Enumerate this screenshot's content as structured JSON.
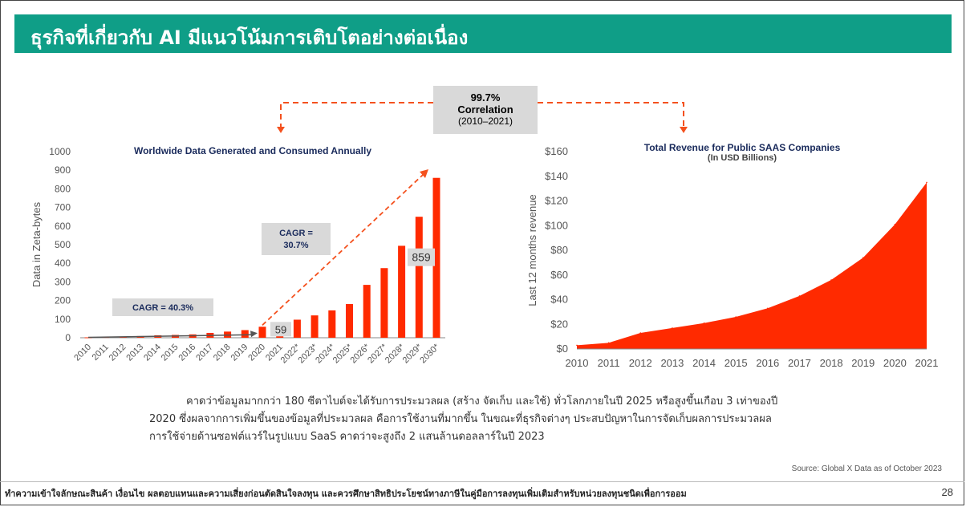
{
  "header": {
    "title": "ธุรกิจที่เกี่ยวกับ AI มีแนวโน้มการเติบโตอย่างต่อเนื่อง"
  },
  "correlation": {
    "value": "99.7%",
    "label": "Correlation",
    "period": "(2010–2021)"
  },
  "colors": {
    "accent": "#ff2a00",
    "teal": "#0f9e87",
    "arrow": "#f4511e",
    "label_bg": "#d9d9d9"
  },
  "chart_data": [
    {
      "type": "bar",
      "title": "Worldwide Data Generated and Consumed Annually",
      "ylabel": "Data in Zeta-bytes",
      "xlabel": "",
      "ylim": [
        0,
        1000
      ],
      "yticks": [
        "0",
        "100",
        "200",
        "300",
        "400",
        "500",
        "600",
        "700",
        "800",
        "900",
        "1000"
      ],
      "categories": [
        "2010",
        "2011",
        "2012",
        "2013",
        "2014",
        "2015",
        "2016",
        "2017",
        "2018",
        "2019",
        "2020",
        "2021",
        "2022*",
        "2023*",
        "2024*",
        "2025*",
        "2026*",
        "2027*",
        "2028*",
        "2029*",
        "2030*"
      ],
      "values": [
        2,
        4,
        6,
        9,
        13,
        15,
        18,
        26,
        33,
        41,
        59,
        79,
        97,
        120,
        147,
        181,
        284,
        374,
        494,
        650,
        859
      ],
      "callouts": [
        {
          "label": "59",
          "category": "2020"
        },
        {
          "label": "859",
          "category": "2030*"
        }
      ],
      "annotations": [
        {
          "text": "CAGR = 40.3%",
          "from": "2010",
          "to": "2020"
        },
        {
          "text": "CAGR = 30.7%",
          "from": "2020",
          "to": "2030*"
        }
      ],
      "grid": false
    },
    {
      "type": "area",
      "title": "Total Revenue for Public SAAS Companies",
      "subtitle": "(In USD Billions)",
      "ylabel": "Last 12 months revenue",
      "xlabel": "",
      "ylim": [
        0,
        160
      ],
      "yticks": [
        "$0",
        "$20",
        "$40",
        "$60",
        "$80",
        "$100",
        "$120",
        "$140",
        "$160"
      ],
      "x": [
        "2010",
        "2011",
        "2012",
        "2013",
        "2014",
        "2015",
        "2016",
        "2017",
        "2018",
        "2019",
        "2020",
        "2021"
      ],
      "values": [
        3,
        5,
        13,
        17,
        21,
        26,
        33,
        43,
        56,
        74,
        101,
        135
      ],
      "grid": false
    }
  ],
  "body": {
    "line1": "คาดว่าข้อมูลมากกว่า 180 ซีตาไบต์จะได้รับการประมวลผล (สร้าง จัดเก็บ และใช้) ทั่วโลกภายในปี 2025 หรือสูงขึ้นเกือบ 3 เท่าของปี",
    "line2": "2020 ซึ่งผลจากการเพิ่มขึ้นของข้อมูลที่ประมวลผล คือการใช้งานที่มากขึ้น ในขณะที่ธุรกิจต่างๆ ประสบปัญหาในการจัดเก็บผลการประมวลผล",
    "line3": "การใช้จ่ายด้านซอฟต์แวร์ในรูปแบบ SaaS คาดว่าจะสูงถึง 2 แสนล้านดอลลาร์ในปี 2023"
  },
  "source": "Source: Global X Data as of October 2023",
  "footer": {
    "disclaimer": "ทำความเข้าใจลักษณะสินค้า เงื่อนไข ผลตอบแทนและความเสี่ยงก่อนตัดสินใจลงทุน และควรศึกษาสิทธิประโยชน์ทางภาษีในคู่มือการลงทุนเพิ่มเติมสำหรับหน่วยลงทุนชนิดเพื่อการออม",
    "page": "28"
  }
}
